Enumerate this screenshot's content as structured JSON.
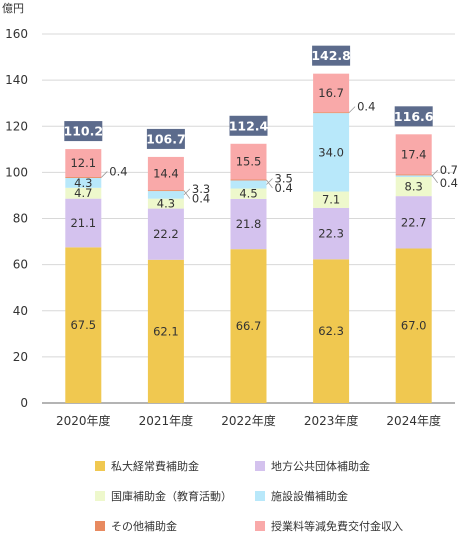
{
  "chart_data": {
    "type": "bar",
    "stacked": true,
    "unit_label": "億円",
    "categories": [
      "2020年度",
      "2021年度",
      "2022年度",
      "2023年度",
      "2024年度"
    ],
    "ylim": [
      0,
      160
    ],
    "yticks": [
      0,
      20,
      40,
      60,
      80,
      100,
      120,
      140,
      160
    ],
    "grid": true,
    "series": [
      {
        "name": "私大経常費補助金",
        "color": "#f0c850",
        "values": [
          67.5,
          62.1,
          66.7,
          62.3,
          67.0
        ]
      },
      {
        "name": "地方公共団体補助金",
        "color": "#d4c2ee",
        "values": [
          21.1,
          22.2,
          21.8,
          22.3,
          22.7
        ]
      },
      {
        "name": "国庫補助金（教育活動）",
        "color": "#eef8cc",
        "values": [
          4.7,
          4.3,
          4.5,
          7.1,
          8.3
        ]
      },
      {
        "name": "施設設備補助金",
        "color": "#b8e8fa",
        "values": [
          4.3,
          3.3,
          3.5,
          34.0,
          0.7
        ]
      },
      {
        "name": "その他補助金",
        "color": "#e88a60",
        "values": [
          0.4,
          0.4,
          0.4,
          0.4,
          0.4
        ]
      },
      {
        "name": "授業料等減免費交付金収入",
        "color": "#f9a9a9",
        "values": [
          12.1,
          14.4,
          15.5,
          16.7,
          17.4
        ]
      }
    ],
    "totals": [
      "110.2",
      "106.7",
      "112.4",
      "142.8",
      "116.6"
    ],
    "legend_position": "bottom"
  }
}
